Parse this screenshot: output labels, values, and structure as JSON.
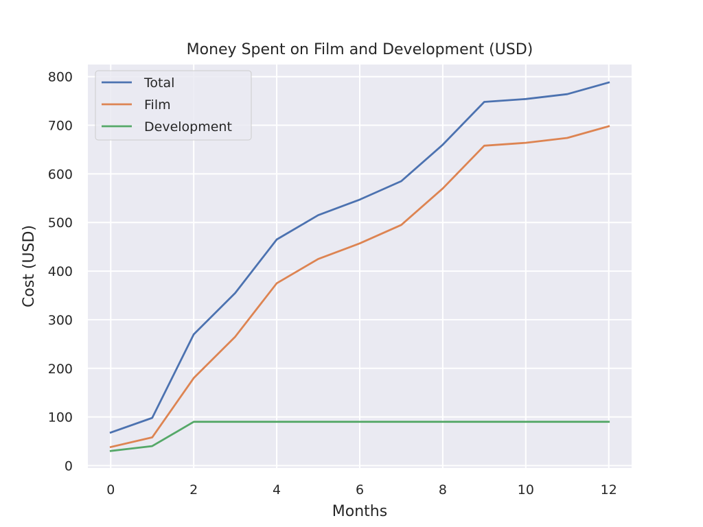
{
  "chart_data": {
    "type": "line",
    "title": "Money Spent on Film and Development (USD)",
    "xlabel": "Months",
    "ylabel": "Cost (USD)",
    "x": [
      0,
      1,
      2,
      3,
      4,
      5,
      6,
      7,
      8,
      9,
      10,
      11,
      12
    ],
    "xticks": [
      0,
      2,
      4,
      6,
      8,
      10,
      12
    ],
    "yticks": [
      0,
      100,
      200,
      300,
      400,
      500,
      600,
      700,
      800
    ],
    "xlim": [
      -0.55,
      12.55
    ],
    "ylim": [
      -5,
      825
    ],
    "grid": true,
    "legend_position": "top-left",
    "background_color": "#eaeaf2",
    "series": [
      {
        "name": "Total",
        "color": "#4c72b0",
        "values": [
          68,
          98,
          270,
          355,
          465,
          515,
          547,
          585,
          660,
          748,
          754,
          764,
          788
        ]
      },
      {
        "name": "Film",
        "color": "#dd8452",
        "values": [
          38,
          58,
          180,
          265,
          375,
          425,
          457,
          495,
          570,
          658,
          664,
          674,
          698
        ]
      },
      {
        "name": "Development",
        "color": "#55a868",
        "values": [
          30,
          40,
          90,
          90,
          90,
          90,
          90,
          90,
          90,
          90,
          90,
          90,
          90
        ]
      }
    ]
  }
}
